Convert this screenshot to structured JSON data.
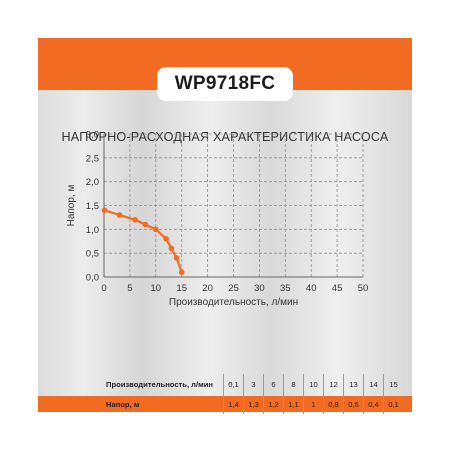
{
  "model": "WP9718FC",
  "colors": {
    "accent": "#f26b22",
    "grid": "#8f8f8f",
    "text": "#333333"
  },
  "chart_data": {
    "type": "line",
    "title": "НАПОРНО-РАСХОДНАЯ ХАРАКТЕРИСТИКА НАСОСА",
    "xlabel": "Производительность, л/мин",
    "ylabel": "Напор, м",
    "xlim": [
      0,
      50
    ],
    "ylim": [
      0,
      3.0
    ],
    "x_ticks": [
      "0",
      "5",
      "10",
      "15",
      "20",
      "25",
      "30",
      "35",
      "40",
      "45",
      "50"
    ],
    "y_ticks": [
      "0,0",
      "0,5",
      "1,0",
      "1,5",
      "2,0",
      "2,5",
      "3,0"
    ],
    "grid": true,
    "series": [
      {
        "color": "#f26b22",
        "x": [
          0.1,
          3,
          6,
          8,
          10,
          12,
          13,
          14,
          15
        ],
        "y": [
          1.4,
          1.3,
          1.2,
          1.1,
          1.0,
          0.8,
          0.6,
          0.4,
          0.1
        ]
      }
    ]
  },
  "table": {
    "rows": [
      {
        "label": "Производительность, л/мин",
        "values": [
          "0,1",
          "3",
          "6",
          "8",
          "10",
          "12",
          "13",
          "14",
          "15"
        ]
      },
      {
        "label": "Напор, м",
        "values": [
          "1,4",
          "1,3",
          "1,2",
          "1,1",
          "1",
          "0,8",
          "0,6",
          "0,4",
          "0,1"
        ]
      }
    ]
  }
}
